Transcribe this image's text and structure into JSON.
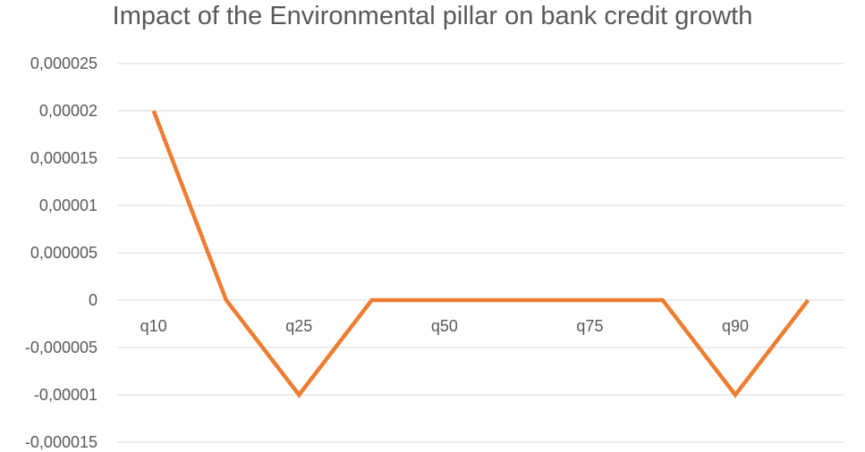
{
  "chart_data": {
    "type": "line",
    "title": "Impact of the Environmental pillar on bank credit growth",
    "xlabel": "",
    "ylabel": "",
    "ylim": [
      -1.5e-05,
      2.5e-05
    ],
    "y_ticks": [
      {
        "value": 2.5e-05,
        "label": "0,000025"
      },
      {
        "value": 2e-05,
        "label": "0,00002"
      },
      {
        "value": 1.5e-05,
        "label": "0,000015"
      },
      {
        "value": 1e-05,
        "label": "0,00001"
      },
      {
        "value": 5e-06,
        "label": "0,000005"
      },
      {
        "value": 0,
        "label": "0"
      },
      {
        "value": -5e-06,
        "label": "-0,000005"
      },
      {
        "value": -1e-05,
        "label": "-0,00001"
      },
      {
        "value": -1.5e-05,
        "label": "-0,000015"
      }
    ],
    "categories": [
      "q10",
      "",
      "q25",
      "",
      "q50",
      "",
      "q75",
      "",
      "q90",
      ""
    ],
    "series": [
      {
        "values": [
          2e-05,
          0,
          -1e-05,
          0,
          0,
          0,
          0,
          0,
          -1e-05,
          0
        ],
        "color": "#ed7d31"
      }
    ],
    "grid": true,
    "legend": "none",
    "colors": {
      "grid": "#d9d9d9",
      "text": "#595959"
    }
  }
}
